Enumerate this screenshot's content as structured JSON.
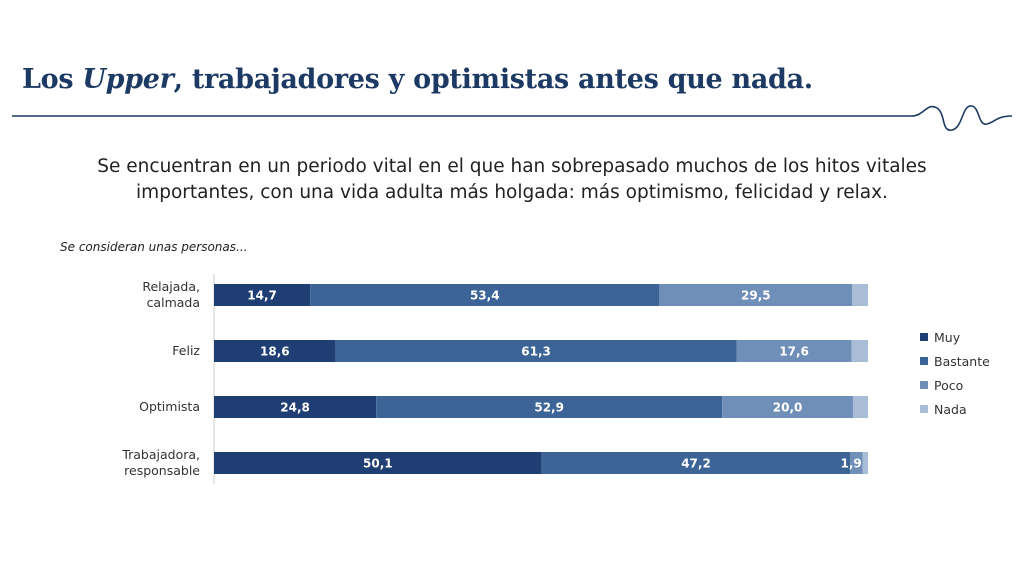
{
  "header": {
    "title_before": "Los ",
    "title_italic": "Upper",
    "title_after": ", trabajadores y optimistas antes que nada."
  },
  "subtitle": {
    "line1": "Se encuentran en un periodo vital en el que han sobrepasado muchos de los hitos vitales",
    "line2": "importantes, con una vida adulta más holgada: más optimismo, felicidad y relax."
  },
  "chart_data": {
    "type": "bar",
    "orientation": "horizontal",
    "stacked": true,
    "title": "Se consideran unas personas...",
    "categories": [
      [
        "Relajada,",
        "calmada"
      ],
      [
        "Feliz"
      ],
      [
        "Optimista"
      ],
      [
        "Trabajadora,",
        "responsable"
      ]
    ],
    "series": [
      {
        "name": "Muy",
        "color": "#1f3e73",
        "values": [
          14.7,
          18.6,
          24.8,
          50.1
        ],
        "labels": [
          "14,7",
          "18,6",
          "24,8",
          "50,1"
        ]
      },
      {
        "name": "Bastante",
        "color": "#3c6496",
        "values": [
          53.4,
          61.3,
          52.9,
          47.2
        ],
        "labels": [
          "53,4",
          "61,3",
          "52,9",
          "47,2"
        ]
      },
      {
        "name": "Poco",
        "color": "#6f8fb9",
        "values": [
          29.5,
          17.6,
          20.0,
          1.9
        ],
        "labels": [
          "29,5",
          "17,6",
          "20,0",
          "1,9"
        ]
      },
      {
        "name": "Nada",
        "color": "#aabdd6",
        "values": [
          2.4,
          2.5,
          2.3,
          0.8
        ],
        "labels": [
          "",
          "",
          "",
          ""
        ]
      }
    ],
    "xlim": [
      0,
      100
    ],
    "legend_position": "right"
  }
}
